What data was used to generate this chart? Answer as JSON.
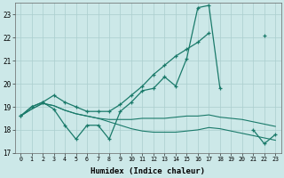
{
  "xlabel": "Humidex (Indice chaleur)",
  "x": [
    0,
    1,
    2,
    3,
    4,
    5,
    6,
    7,
    8,
    9,
    10,
    11,
    12,
    13,
    14,
    15,
    16,
    17,
    18,
    19,
    20,
    21,
    22,
    23
  ],
  "line1": [
    18.6,
    19.0,
    19.2,
    18.9,
    18.2,
    17.6,
    18.2,
    18.2,
    17.6,
    18.8,
    19.2,
    19.7,
    19.8,
    20.3,
    19.9,
    21.1,
    23.3,
    23.4,
    19.8,
    null,
    null,
    18.0,
    17.4,
    17.8
  ],
  "line2": [
    18.6,
    19.0,
    19.2,
    19.5,
    19.2,
    19.0,
    18.8,
    18.8,
    18.8,
    19.1,
    19.5,
    19.9,
    20.4,
    20.8,
    21.2,
    21.5,
    21.8,
    22.2,
    null,
    null,
    null,
    null,
    22.1,
    null
  ],
  "line3": [
    18.6,
    18.9,
    19.15,
    19.05,
    18.85,
    18.7,
    18.6,
    18.5,
    18.45,
    18.45,
    18.45,
    18.5,
    18.5,
    18.5,
    18.55,
    18.6,
    18.6,
    18.65,
    18.55,
    18.5,
    18.45,
    18.35,
    18.25,
    18.15
  ],
  "line4": [
    18.6,
    18.9,
    19.15,
    19.05,
    18.85,
    18.7,
    18.6,
    18.5,
    18.35,
    18.2,
    18.05,
    17.95,
    17.9,
    17.9,
    17.9,
    17.95,
    18.0,
    18.1,
    18.05,
    17.95,
    17.85,
    17.75,
    17.65,
    17.55
  ],
  "ylim": [
    17.0,
    23.5
  ],
  "yticks": [
    17,
    18,
    19,
    20,
    21,
    22,
    23
  ],
  "color": "#1a7a6a",
  "bg_color": "#cce8e8",
  "grid_color": "#aacece"
}
